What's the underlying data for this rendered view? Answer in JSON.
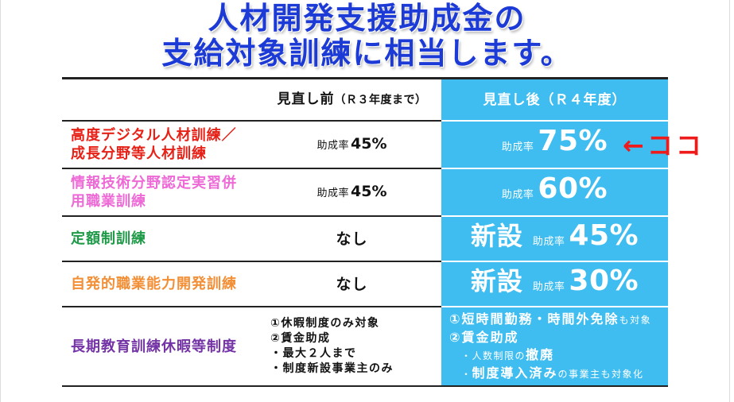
{
  "title": {
    "line1": "人材開発支援助成金の",
    "line2": "支給対象訓練に相当します。"
  },
  "colors": {
    "title": "#1c3ad6",
    "after_column": "#3fbdf0",
    "callout": "#ef1b1b",
    "rule": "#222222"
  },
  "table": {
    "header": {
      "before_main": "見直し前",
      "before_sub": "（Ｒ３年度まで）",
      "after": "見直し後（Ｒ４年度）"
    },
    "rows": [
      {
        "label_lines": [
          "高度デジタル人材訓練／",
          "成長分野等人材訓練"
        ],
        "label_color": "#e62117",
        "before": {
          "rate_label": "助成率",
          "rate": "45%"
        },
        "after": {
          "rate_label": "助成率",
          "rate": "75%"
        }
      },
      {
        "label_lines": [
          "情報技術分野認定実習併",
          "用職業訓練"
        ],
        "label_color": "#ee6ad6",
        "before": {
          "rate_label": "助成率",
          "rate": "45%"
        },
        "after": {
          "rate_label": "助成率",
          "rate": "60%"
        }
      },
      {
        "label_lines": [
          "定額制訓練"
        ],
        "label_color": "#1f9a48",
        "before": {
          "text": "なし"
        },
        "after": {
          "badge": "新設",
          "rate_label": "助成率",
          "rate": "45%"
        }
      },
      {
        "label_lines": [
          "自発的職業能力開発訓練"
        ],
        "label_color": "#f28f36",
        "before": {
          "text": "なし"
        },
        "after": {
          "badge": "新設",
          "rate_label": "助成率",
          "rate": "30%"
        }
      },
      {
        "label_lines": [
          "長期教育訓練休暇等制度"
        ],
        "label_color": "#7434a6",
        "before": {
          "lines": [
            "①休暇制度のみ対象",
            "②賃金助成",
            "・最大２人まで",
            "・制度新設事業主のみ"
          ]
        },
        "after": {
          "lines": [
            [
              "①短時間勤務・時間外免除",
              "も対象"
            ],
            [
              "②賃金助成"
            ],
            [
              "・人数制限の",
              "撤廃"
            ],
            [
              "・",
              "制度導入済み",
              "の事業主も対象化"
            ]
          ]
        }
      }
    ]
  },
  "callout": "←ココ"
}
